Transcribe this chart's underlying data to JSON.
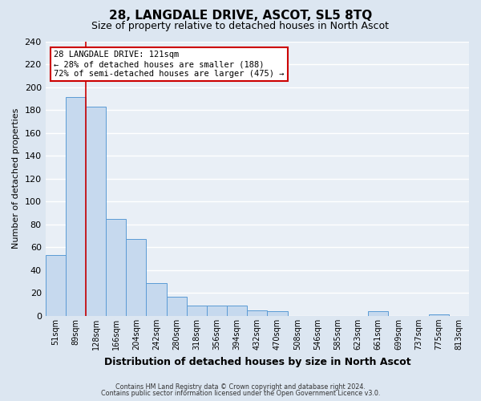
{
  "title": "28, LANGDALE DRIVE, ASCOT, SL5 8TQ",
  "subtitle": "Size of property relative to detached houses in North Ascot",
  "xlabel": "Distribution of detached houses by size in North Ascot",
  "ylabel": "Number of detached properties",
  "footer_line1": "Contains HM Land Registry data © Crown copyright and database right 2024.",
  "footer_line2": "Contains public sector information licensed under the Open Government Licence v3.0.",
  "bar_labels": [
    "51sqm",
    "89sqm",
    "128sqm",
    "166sqm",
    "204sqm",
    "242sqm",
    "280sqm",
    "318sqm",
    "356sqm",
    "394sqm",
    "432sqm",
    "470sqm",
    "508sqm",
    "546sqm",
    "585sqm",
    "623sqm",
    "661sqm",
    "699sqm",
    "737sqm",
    "775sqm",
    "813sqm"
  ],
  "bar_values": [
    53,
    191,
    183,
    85,
    67,
    29,
    17,
    9,
    9,
    9,
    5,
    4,
    0,
    0,
    0,
    0,
    4,
    0,
    0,
    1,
    0
  ],
  "bar_color": "#c6d9ee",
  "bar_edge_color": "#5b9bd5",
  "vline_color": "#cc0000",
  "annotation_box_edge": "#cc0000",
  "ylim": [
    0,
    240
  ],
  "yticks": [
    0,
    20,
    40,
    60,
    80,
    100,
    120,
    140,
    160,
    180,
    200,
    220,
    240
  ],
  "bg_color": "#dce6f1",
  "plot_bg_color": "#e9eff6",
  "grid_color": "#ffffff",
  "title_fontsize": 11,
  "subtitle_fontsize": 9
}
